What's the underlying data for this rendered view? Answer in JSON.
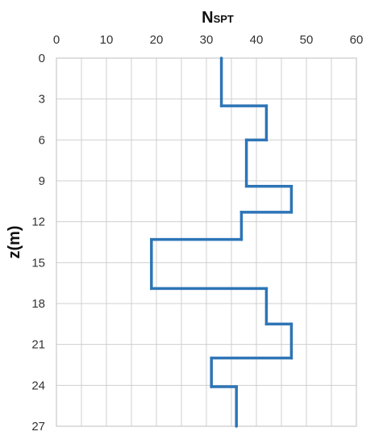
{
  "chart_data": {
    "type": "line",
    "orientation": "depth-profile",
    "title": "",
    "xlabel": "N",
    "xlabel_subscript": "SPT",
    "ylabel": "z(m)",
    "x_axis_position": "top",
    "y_axis_inverted": true,
    "xlim": [
      0,
      60
    ],
    "ylim": [
      0,
      27
    ],
    "xticks": [
      0,
      10,
      20,
      30,
      40,
      50,
      60
    ],
    "yticks": [
      0,
      3,
      6,
      9,
      12,
      15,
      18,
      21,
      24,
      27
    ],
    "grid": true,
    "minor_vertical_grid_step": 5,
    "legend": "none",
    "series": [
      {
        "color": "#2e75b6",
        "points": [
          {
            "n": 33,
            "z": 0.0
          },
          {
            "n": 33,
            "z": 3.5
          },
          {
            "n": 42,
            "z": 3.5
          },
          {
            "n": 42,
            "z": 6.0
          },
          {
            "n": 38,
            "z": 6.0
          },
          {
            "n": 38,
            "z": 9.4
          },
          {
            "n": 47,
            "z": 9.4
          },
          {
            "n": 47,
            "z": 11.3
          },
          {
            "n": 37,
            "z": 11.3
          },
          {
            "n": 37,
            "z": 13.3
          },
          {
            "n": 19,
            "z": 13.3
          },
          {
            "n": 19,
            "z": 16.9
          },
          {
            "n": 42,
            "z": 16.9
          },
          {
            "n": 42,
            "z": 19.5
          },
          {
            "n": 47,
            "z": 19.5
          },
          {
            "n": 47,
            "z": 22.0
          },
          {
            "n": 31,
            "z": 22.0
          },
          {
            "n": 31,
            "z": 24.1
          },
          {
            "n": 36,
            "z": 24.1
          },
          {
            "n": 36,
            "z": 27.0
          }
        ]
      }
    ]
  }
}
